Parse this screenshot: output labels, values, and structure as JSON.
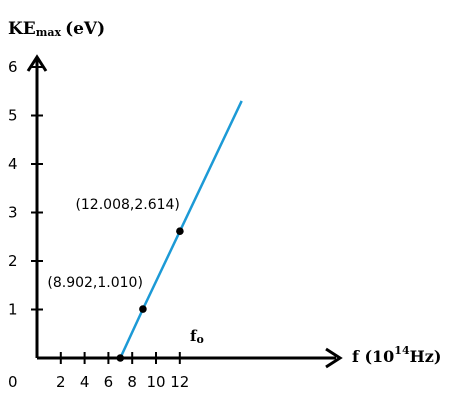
{
  "chart_data": {
    "type": "line",
    "ylabel_main": "KE",
    "ylabel_sub": "max",
    "ylabel_unit": "(eV)",
    "xlabel_main": "f (10",
    "xlabel_exp": "14",
    "xlabel_unit": "Hz)",
    "origin_label": "0",
    "xticks": [
      2,
      4,
      6,
      8,
      10,
      12
    ],
    "yticks": [
      1,
      2,
      3,
      4,
      5,
      6
    ],
    "xlim": [
      0,
      17.2
    ],
    "ylim": [
      0,
      6.3
    ],
    "grid": false,
    "series": [
      {
        "x": [
          7.0,
          8.902,
          12.008,
          17.2
        ],
        "y": [
          0,
          1.01,
          2.614,
          5.3
        ]
      }
    ],
    "points": [
      {
        "x": 8.902,
        "y": 1.01,
        "label": "(8.902,1.010)"
      },
      {
        "x": 12.008,
        "y": 2.614,
        "label": "(12.008,2.614)"
      },
      {
        "x": 7.0,
        "y": 0
      }
    ],
    "threshold_label": "f",
    "threshold_sub": "o",
    "line_color": "#1c9ad6"
  }
}
